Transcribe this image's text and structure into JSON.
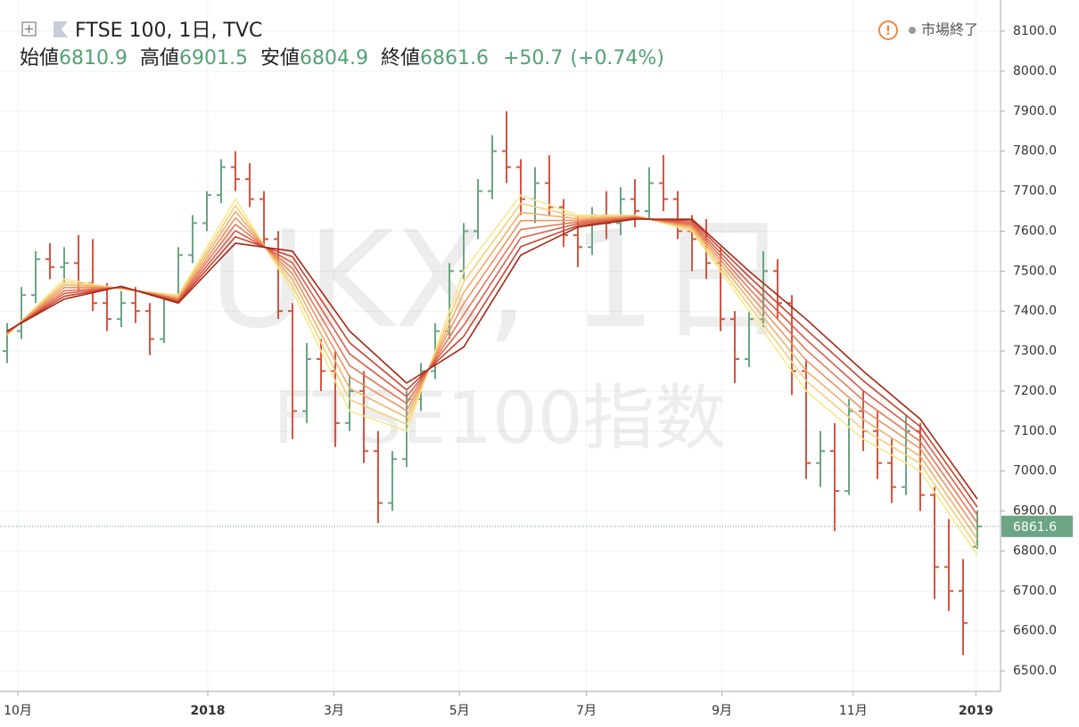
{
  "chart_data": {
    "type": "ohlc",
    "symbol": "FTSE 100, 1日, TVC",
    "status": "市場終了",
    "watermark": "UKX, 1日",
    "watermark_sub": "FTSE100指数",
    "legend_items": [
      {
        "label": "始値",
        "value": 6810.9
      },
      {
        "label": "高値",
        "value": 6901.5
      },
      {
        "label": "安値",
        "value": 6804.9
      },
      {
        "label": "終値",
        "value": 6861.6
      }
    ],
    "change": {
      "value": 50.7,
      "label": "+50.7"
    },
    "change_pct": {
      "value": 0.74,
      "label": "(+0.74%)"
    },
    "last_price": 6861.6,
    "up_color": "#6ba583",
    "down_color": "#d75442",
    "xlim": [
      -0.5,
      69.5
    ],
    "xticks": [
      {
        "value": 0.75,
        "label": "10月"
      },
      {
        "value": 14.06,
        "label": "2018"
      },
      {
        "value": 22.9,
        "label": "3月"
      },
      {
        "value": 31.7,
        "label": "5月"
      },
      {
        "value": 40.6,
        "label": "7月"
      },
      {
        "value": 50.1,
        "label": "9月"
      },
      {
        "value": 59.3,
        "label": "11月"
      },
      {
        "value": 67.9,
        "label": "2019"
      }
    ],
    "ylim": [
      6449,
      8178
    ],
    "yticks": [
      {
        "value": 6500,
        "label": "6500.0"
      },
      {
        "value": 6600,
        "label": "6600.0"
      },
      {
        "value": 6700,
        "label": "6700.0"
      },
      {
        "value": 6800,
        "label": "6800.0"
      },
      {
        "value": 6900,
        "label": "6900.0"
      },
      {
        "value": 7000,
        "label": "7000.0"
      },
      {
        "value": 7100,
        "label": "7100.0"
      },
      {
        "value": 7200,
        "label": "7200.0"
      },
      {
        "value": 7300,
        "label": "7300.0"
      },
      {
        "value": 7400,
        "label": "7400.0"
      },
      {
        "value": 7500,
        "label": "7500.0"
      },
      {
        "value": 7600,
        "label": "7600.0"
      },
      {
        "value": 7700,
        "label": "7700.0"
      },
      {
        "value": 7800,
        "label": "7800.0"
      },
      {
        "value": 7900,
        "label": "7900.0"
      },
      {
        "value": 8000,
        "label": "8000.0"
      },
      {
        "value": 8100,
        "label": "8100.0"
      }
    ],
    "grid": true,
    "x": [
      0,
      1,
      2,
      3,
      4,
      5,
      6,
      7,
      8,
      9,
      10,
      11,
      12,
      13,
      14,
      15,
      16,
      17,
      18,
      19,
      20,
      21,
      22,
      23,
      24,
      25,
      26,
      27,
      28,
      29,
      30,
      31,
      32,
      33,
      34,
      35,
      36,
      37,
      38,
      39,
      40,
      41,
      42,
      43,
      44,
      45,
      46,
      47,
      48,
      49,
      50,
      51,
      52,
      53,
      54,
      55,
      56,
      57,
      58,
      59,
      60,
      61,
      62,
      63,
      64,
      65,
      66,
      67,
      68
    ],
    "open": [
      7300,
      7350,
      7440,
      7530,
      7510,
      7520,
      7470,
      7420,
      7380,
      7420,
      7400,
      7330,
      7430,
      7540,
      7620,
      7690,
      7760,
      7730,
      7680,
      7580,
      7400,
      7150,
      7280,
      7250,
      7120,
      7200,
      7050,
      6920,
      7030,
      7180,
      7250,
      7350,
      7500,
      7600,
      7700,
      7800,
      7760,
      7680,
      7720,
      7660,
      7590,
      7560,
      7640,
      7620,
      7680,
      7650,
      7720,
      7680,
      7600,
      7580,
      7520,
      7380,
      7280,
      7380,
      7500,
      7420,
      7250,
      7020,
      7050,
      6950,
      7150,
      7100,
      7020,
      6960,
      7100,
      6940,
      6760,
      6700,
      6810.9
    ],
    "high": [
      7370,
      7460,
      7550,
      7570,
      7560,
      7590,
      7580,
      7470,
      7450,
      7460,
      7420,
      7440,
      7560,
      7640,
      7700,
      7780,
      7800,
      7770,
      7700,
      7600,
      7420,
      7320,
      7330,
      7300,
      7240,
      7250,
      7100,
      7050,
      7200,
      7270,
      7370,
      7520,
      7620,
      7730,
      7840,
      7900,
      7780,
      7760,
      7790,
      7680,
      7640,
      7660,
      7700,
      7710,
      7730,
      7760,
      7790,
      7700,
      7640,
      7630,
      7560,
      7400,
      7400,
      7550,
      7530,
      7440,
      7280,
      7100,
      7120,
      7180,
      7200,
      7150,
      7080,
      7140,
      7120,
      6960,
      6880,
      6780,
      6901.5
    ],
    "low": [
      7270,
      7330,
      7420,
      7480,
      7470,
      7450,
      7400,
      7350,
      7360,
      7370,
      7290,
      7320,
      7420,
      7520,
      7600,
      7670,
      7700,
      7660,
      7560,
      7380,
      7080,
      7120,
      7200,
      7060,
      7100,
      7020,
      6870,
      6900,
      7010,
      7150,
      7230,
      7330,
      7480,
      7580,
      7680,
      7720,
      7640,
      7620,
      7640,
      7560,
      7510,
      7540,
      7580,
      7590,
      7610,
      7630,
      7650,
      7580,
      7500,
      7480,
      7350,
      7220,
      7260,
      7360,
      7380,
      7190,
      6980,
      6960,
      6850,
      6940,
      7050,
      6980,
      6920,
      6940,
      6900,
      6680,
      6650,
      6540,
      6804.9
    ],
    "close": [
      7350,
      7440,
      7530,
      7510,
      7520,
      7470,
      7420,
      7380,
      7420,
      7400,
      7330,
      7430,
      7540,
      7620,
      7690,
      7760,
      7730,
      7680,
      7580,
      7400,
      7150,
      7280,
      7250,
      7120,
      7200,
      7050,
      6920,
      7030,
      7180,
      7250,
      7350,
      7500,
      7600,
      7700,
      7800,
      7760,
      7680,
      7720,
      7660,
      7590,
      7560,
      7640,
      7620,
      7680,
      7650,
      7720,
      7680,
      7600,
      7580,
      7520,
      7380,
      7280,
      7380,
      7500,
      7420,
      7250,
      7020,
      7050,
      6950,
      7150,
      7100,
      7020,
      6960,
      7100,
      6940,
      6760,
      6700,
      6620,
      6861.6
    ],
    "overlay_x": [
      0,
      4,
      8,
      12,
      16,
      20,
      24,
      28,
      32,
      36,
      40,
      44,
      48,
      52,
      56,
      60,
      64,
      68
    ],
    "overlays": [
      {
        "color": "#f7e98a",
        "values": [
          7340,
          7480,
          7455,
          7440,
          7680,
          7450,
          7150,
          7100,
          7500,
          7690,
          7640,
          7640,
          7600,
          7400,
          7200,
          7080,
          7000,
          6790
        ]
      },
      {
        "color": "#f5cf78",
        "values": [
          7341,
          7473,
          7456,
          7437,
          7664,
          7464,
          7179,
          7117,
          7473,
          7669,
          7636,
          7639,
          7604,
          7414,
          7226,
          7104,
          7019,
          6810
        ]
      },
      {
        "color": "#f2b06a",
        "values": [
          7343,
          7466,
          7457,
          7434,
          7649,
          7479,
          7207,
          7134,
          7446,
          7647,
          7631,
          7637,
          7609,
          7429,
          7251,
          7129,
          7037,
          6830
        ]
      },
      {
        "color": "#ec9460",
        "values": [
          7344,
          7459,
          7458,
          7431,
          7633,
          7493,
          7236,
          7151,
          7419,
          7626,
          7627,
          7636,
          7613,
          7443,
          7277,
          7153,
          7056,
          6850
        ]
      },
      {
        "color": "#e57856",
        "values": [
          7346,
          7451,
          7459,
          7429,
          7617,
          7507,
          7264,
          7169,
          7391,
          7604,
          7623,
          7634,
          7617,
          7457,
          7303,
          7177,
          7074,
          6870
        ]
      },
      {
        "color": "#dc5d48",
        "values": [
          7347,
          7444,
          7460,
          7426,
          7601,
          7521,
          7293,
          7186,
          7364,
          7583,
          7619,
          7633,
          7621,
          7471,
          7329,
          7201,
          7093,
          6890
        ]
      },
      {
        "color": "#c9432f",
        "values": [
          7349,
          7437,
          7461,
          7423,
          7586,
          7536,
          7321,
          7203,
          7337,
          7561,
          7614,
          7631,
          7626,
          7486,
          7354,
          7226,
          7111,
          6910
        ]
      },
      {
        "color": "#a52714",
        "values": [
          7350,
          7430,
          7462,
          7420,
          7570,
          7550,
          7350,
          7220,
          7310,
          7540,
          7610,
          7630,
          7630,
          7500,
          7380,
          7250,
          7130,
          6930
        ]
      }
    ]
  }
}
